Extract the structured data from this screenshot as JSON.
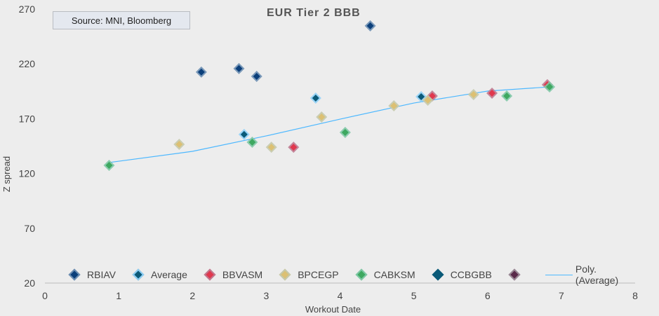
{
  "source_box": "Source: MNI, Bloomberg",
  "chart_data": {
    "type": "scatter",
    "title": "EUR Tier 2 BBB",
    "xlabel": "Workout Date",
    "ylabel": "Z spread",
    "xlim": [
      0,
      8
    ],
    "ylim": [
      20,
      270
    ],
    "xticks": [
      0,
      1,
      2,
      3,
      4,
      5,
      6,
      7,
      8
    ],
    "yticks": [
      20,
      70,
      120,
      170,
      220,
      270
    ],
    "grid": false,
    "legend_position": "bottom",
    "series": [
      {
        "name": "RBIAV",
        "color": "#0b3f7a",
        "halo": "#6d8fb3",
        "x": [
          2.12,
          2.63,
          2.87,
          4.41
        ],
        "y": [
          212.5,
          215.7,
          208.6,
          254.7
        ]
      },
      {
        "name": "Average",
        "color": "#0b5a78",
        "halo": "#8fd0f7",
        "x": [
          2.7,
          3.67,
          5.1
        ],
        "y": [
          155.6,
          188.8,
          190.1
        ]
      },
      {
        "name": "BBVASM",
        "color": "#e0384e",
        "halo": "#bf7a90",
        "x": [
          3.37,
          5.25,
          6.06,
          6.81
        ],
        "y": [
          144.0,
          190.7,
          193.3,
          201.0
        ]
      },
      {
        "name": "BPCEGP",
        "color": "#dcc073",
        "halo": "#c5c9ab",
        "x": [
          1.82,
          3.07,
          3.75,
          4.73,
          5.19,
          5.81
        ],
        "y": [
          146.6,
          144.0,
          171.5,
          181.8,
          186.9,
          192.0
        ]
      },
      {
        "name": "CABKSM",
        "color": "#3ea860",
        "halo": "#7fc8a6",
        "x": [
          0.87,
          2.81,
          4.07,
          6.26,
          6.84
        ],
        "y": [
          127.4,
          148.5,
          157.5,
          190.7,
          199.0
        ]
      },
      {
        "name": "CCBGBB",
        "color": "#0b5a78",
        "halo": "#0b5a78",
        "x": [],
        "y": []
      },
      {
        "name": "",
        "color": "#5a2a4a",
        "halo": "#9a8a96",
        "x": [],
        "y": []
      }
    ],
    "trendline": {
      "name": "Poly. (Average)",
      "color": "#4db8ff",
      "x": [
        0.87,
        2,
        3,
        4,
        5,
        6,
        6.84
      ],
      "y": [
        130,
        140.2,
        154.3,
        169.6,
        184.3,
        195.2,
        199
      ]
    }
  }
}
